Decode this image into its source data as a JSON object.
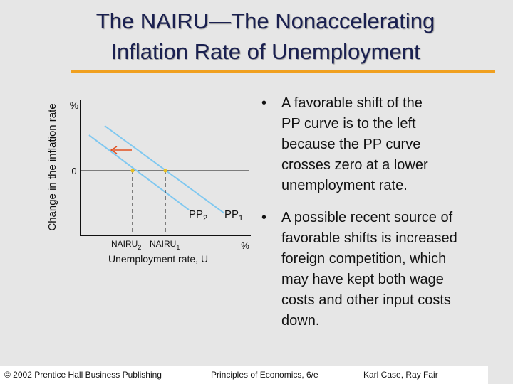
{
  "header": {
    "title_lines": [
      "The NAIRU—The Nonaccelerating",
      "Inflation Rate of Unemployment"
    ]
  },
  "diagram": {
    "y_axis_label": "Change in the inflation rate",
    "y_top": "%",
    "y_zero": "0",
    "curves": [
      {
        "name": "PP",
        "sub": "2"
      },
      {
        "name": "PP",
        "sub": "1"
      }
    ],
    "x_marks": [
      {
        "name": "NAIRU",
        "sub": "2"
      },
      {
        "name": "NAIRU",
        "sub": "1"
      }
    ],
    "x_end": "%",
    "x_axis_label": "Unemployment rate, U"
  },
  "bullets": [
    {
      "lines": [
        "A favorable shift of the",
        "PP curve is to the left",
        "because the PP curve",
        "crosses zero at a lower",
        "unemployment rate."
      ]
    },
    {
      "lines": [
        "A possible recent source of",
        "favorable shifts is increased",
        "foreign competition, which",
        "may have kept both wage",
        "costs and other input costs",
        "down."
      ]
    }
  ],
  "footer": {
    "copyright": "© 2002 Prentice Hall Business Publishing",
    "book": "Principles of Economics, 6/e",
    "authors": "Karl Case, Ray Fair"
  }
}
